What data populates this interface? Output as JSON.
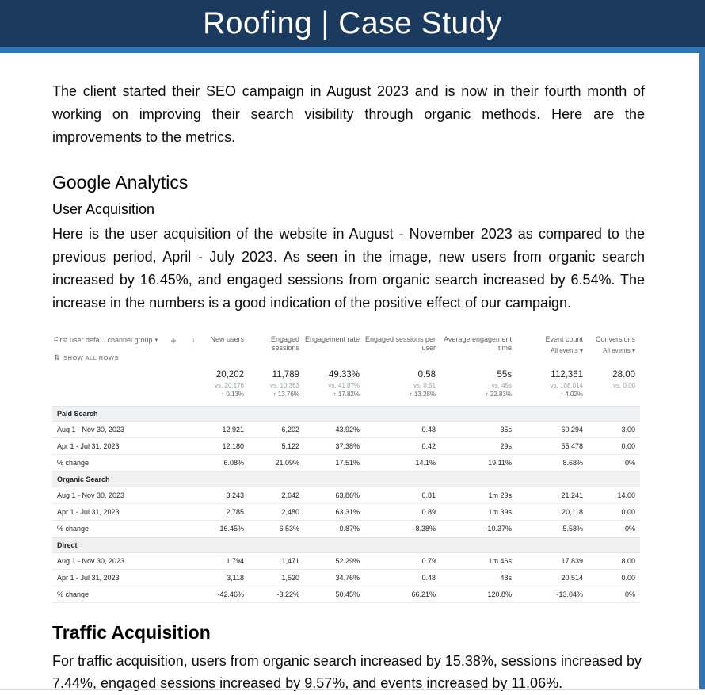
{
  "banner": {
    "title": "Roofing | Case Study"
  },
  "intro": "The client started their SEO campaign in August 2023 and is now in their fourth month of working on improving their search visibility through organic methods. Here are the improvements to the metrics.",
  "google_analytics": {
    "heading": "Google Analytics",
    "subheading": "User Acquisition",
    "paragraph": "Here is the user acquisition of the website in August - November 2023 as compared to the previous period, April - July 2023. As seen in the image, new users from organic search increased by 16.45%, and engaged sessions from organic search increased by 6.54%. The increase in the numbers is a good indication of the positive effect of our campaign."
  },
  "traffic_acquisition": {
    "heading": "Traffic Acquisition",
    "paragraph": "For traffic acquisition, users from organic search increased by 15.38%, sessions increased by 7.44%, engaged sessions increased by 9.57%, and events increased by 11.06%."
  },
  "ga_table": {
    "dimension_header": "First user defa... channel group",
    "dimension_caret": "▾",
    "add_button": "+",
    "show_all_rows": "SHOW ALL ROWS",
    "columns": [
      {
        "label": "New users",
        "sorted": true
      },
      {
        "label": "Engaged sessions"
      },
      {
        "label": "Engagement rate"
      },
      {
        "label": "Engaged sessions per user"
      },
      {
        "label": "Average engagement time"
      },
      {
        "label": "Event count",
        "filter": "All events"
      },
      {
        "label": "Conversions",
        "filter": "All events"
      }
    ],
    "totals": {
      "values": [
        "20,202",
        "11,789",
        "49.33%",
        "0.58",
        "55s",
        "112,361",
        "28.00"
      ],
      "vs": [
        "vs. 20,176",
        "vs. 10,363",
        "vs. 41.87%",
        "vs. 0.51",
        "vs. 45s",
        "vs. 108,014",
        "vs. 0.00"
      ],
      "change": [
        "↑ 0.13%",
        "↑ 13.76%",
        "↑ 17.82%",
        "↑ 13.28%",
        "↑ 22.83%",
        "↑ 4.02%",
        ""
      ]
    },
    "groups": [
      {
        "name": "Paid Search",
        "rows": [
          {
            "label": "Aug 1 - Nov 30, 2023",
            "cells": [
              "12,921",
              "6,202",
              "43.92%",
              "0.48",
              "35s",
              "60,294",
              "3.00"
            ]
          },
          {
            "label": "Apr 1 - Jul 31, 2023",
            "cells": [
              "12,180",
              "5,122",
              "37.38%",
              "0.42",
              "29s",
              "55,478",
              "0.00"
            ]
          },
          {
            "label": "% change",
            "cells": [
              "6.08%",
              "21.09%",
              "17.51%",
              "14.1%",
              "19.11%",
              "8.68%",
              "0%"
            ]
          }
        ]
      },
      {
        "name": "Organic Search",
        "rows": [
          {
            "label": "Aug 1 - Nov 30, 2023",
            "cells": [
              "3,243",
              "2,642",
              "63.86%",
              "0.81",
              "1m 29s",
              "21,241",
              "14.00"
            ]
          },
          {
            "label": "Apr 1 - Jul 31, 2023",
            "cells": [
              "2,785",
              "2,480",
              "63.31%",
              "0.89",
              "1m 39s",
              "20,118",
              "0.00"
            ]
          },
          {
            "label": "% change",
            "cells": [
              "16.45%",
              "6.53%",
              "0.87%",
              "-8.38%",
              "-10.37%",
              "5.58%",
              "0%"
            ]
          }
        ]
      },
      {
        "name": "Direct",
        "rows": [
          {
            "label": "Aug 1 - Nov 30, 2023",
            "cells": [
              "1,794",
              "1,471",
              "52.29%",
              "0.79",
              "1m 46s",
              "17,839",
              "8.00"
            ]
          },
          {
            "label": "Apr 1 - Jul 31, 2023",
            "cells": [
              "3,118",
              "1,520",
              "34.76%",
              "0.48",
              "48s",
              "20,514",
              "0.00"
            ]
          },
          {
            "label": "% change",
            "cells": [
              "-42.46%",
              "-3.22%",
              "50.45%",
              "66.21%",
              "120.8%",
              "-13.04%",
              "0%"
            ]
          }
        ]
      }
    ]
  },
  "colors": {
    "banner_bg": "#1c3a5e",
    "accent_strip": "#2f74b5",
    "table_text": "#202124",
    "table_muted": "#5f6368"
  }
}
